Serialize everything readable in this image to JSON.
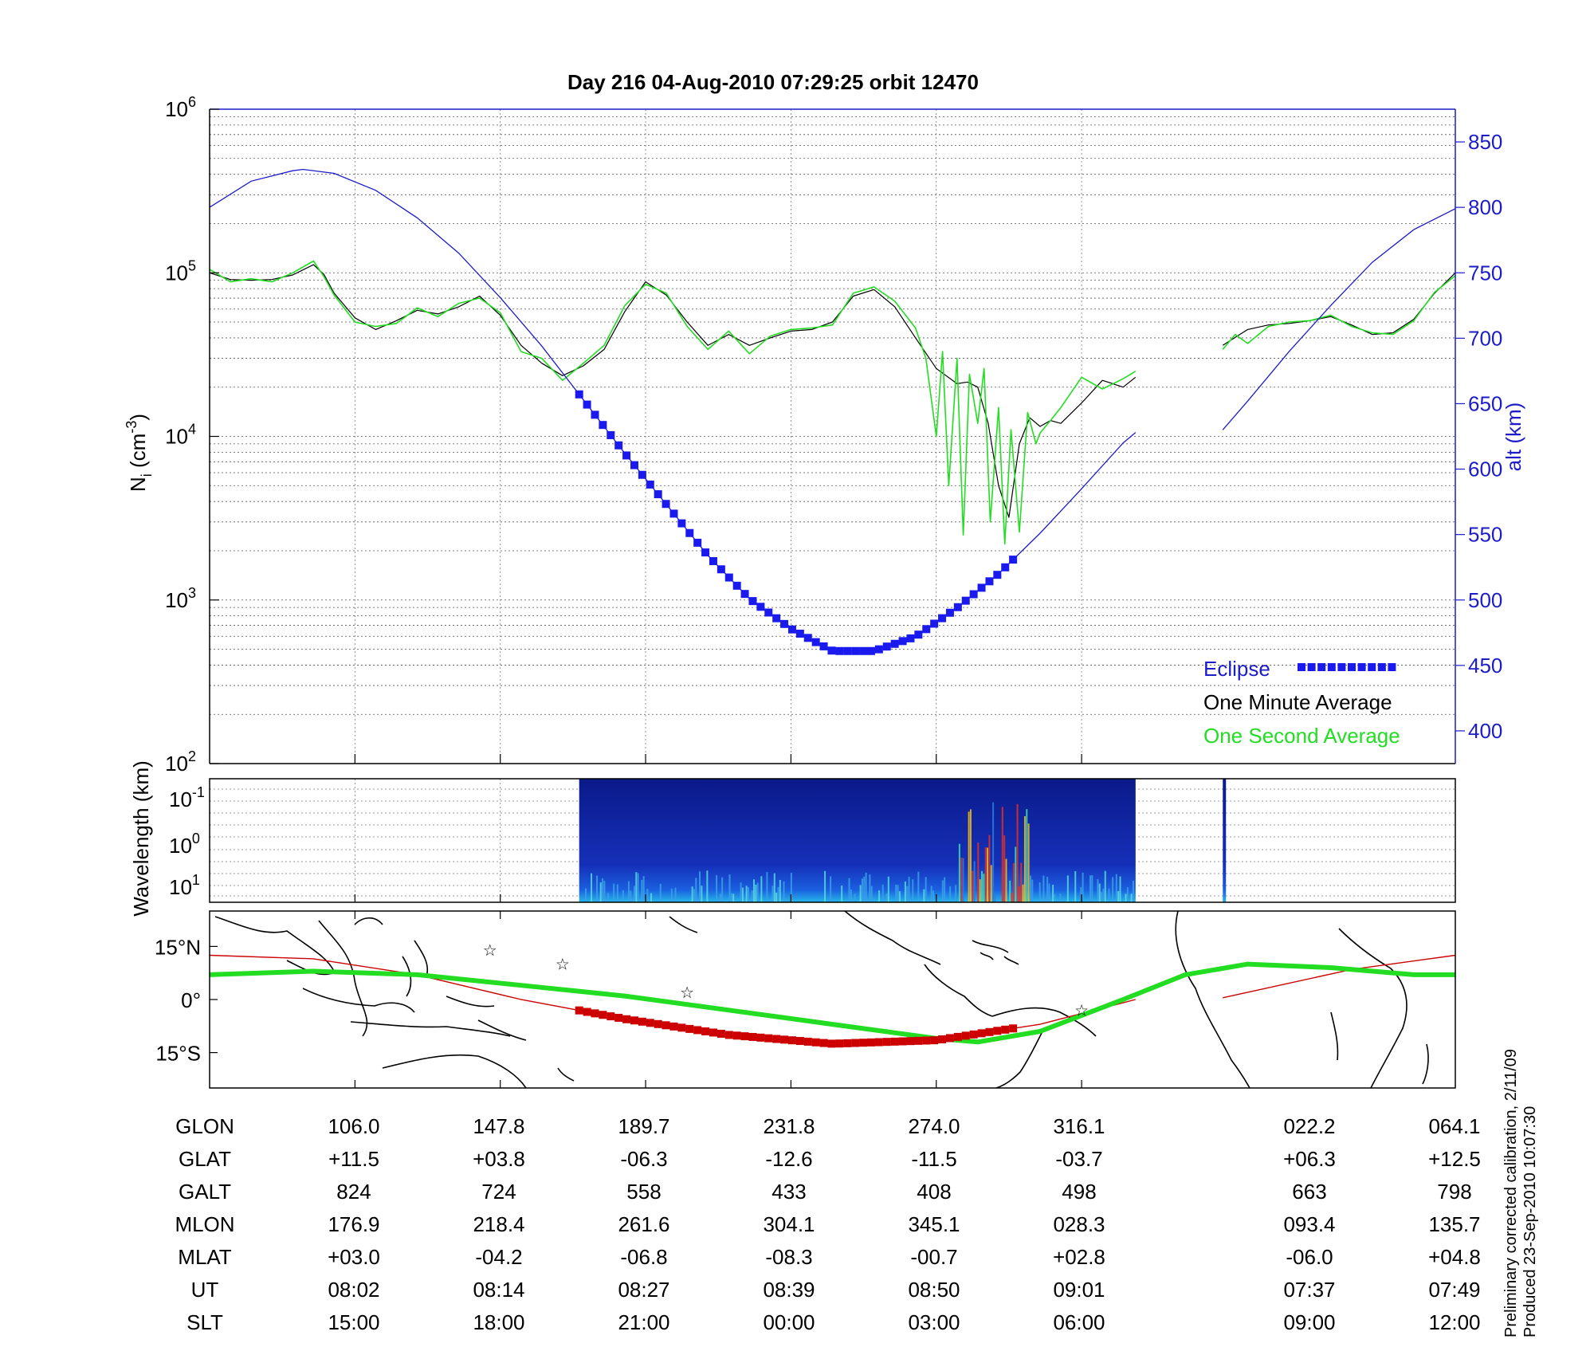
{
  "title": "Day 216  04-Aug-2010 07:29:25   orbit 12470",
  "colors": {
    "axis_blue": "#1c1cc8",
    "eclipse": "#1a1aee",
    "one_minute": "#000000",
    "one_second": "#22dd22",
    "track_red": "#cc0000",
    "ground_green": "#22dd22",
    "star": "#cc33cc"
  },
  "chart_data": [
    {
      "type": "line",
      "panel": "density",
      "ylabel": "N_i (cm^-3)",
      "ylabel_base": "N",
      "ylabel_sub": "i",
      "ylabel_unit": "(cm",
      "ylabel_exp": "-3",
      "ylabel_close": ")",
      "y_scale": "log",
      "ylim": [
        100,
        1000000
      ],
      "y_ticks": [
        {
          "value": 100,
          "base": "10",
          "exp": "2"
        },
        {
          "value": 1000,
          "base": "10",
          "exp": "3"
        },
        {
          "value": 10000,
          "base": "10",
          "exp": "4"
        },
        {
          "value": 100000,
          "base": "10",
          "exp": "5"
        },
        {
          "value": 1000000,
          "base": "10",
          "exp": "6"
        }
      ],
      "y2label": "alt (km)",
      "y2lim": [
        375,
        875
      ],
      "y2_ticks": [
        400,
        450,
        500,
        550,
        600,
        650,
        700,
        750,
        800,
        850
      ],
      "x_range_minutes": [
        0,
        60
      ],
      "x_tick_minutes": [
        7,
        14,
        21,
        28,
        35,
        42
      ],
      "legend": [
        "Eclipse",
        "One Minute Average",
        "One Second Average"
      ],
      "legend_placement": "bottom-right",
      "series": [
        {
          "name": "One Minute Average",
          "x": [
            0,
            1,
            2,
            3,
            4,
            5,
            5.5,
            6,
            7,
            8,
            9,
            10,
            11,
            12,
            13,
            14,
            15,
            16,
            17,
            18,
            19,
            20,
            21,
            22,
            23,
            24,
            25,
            26,
            27,
            28,
            29,
            30,
            31,
            32,
            33,
            34,
            35,
            36,
            36.5,
            37,
            37.5,
            38,
            38.5,
            39,
            39.5,
            40,
            40.5,
            41,
            42,
            43,
            44,
            44.6
          ],
          "y": [
            100000,
            91000,
            90000,
            91000,
            97000,
            112000,
            98000,
            75000,
            53000,
            45000,
            51000,
            59000,
            56000,
            62000,
            72000,
            55000,
            36000,
            28000,
            23500,
            27000,
            34000,
            58000,
            88000,
            73000,
            50000,
            36000,
            42000,
            36000,
            40000,
            44000,
            45000,
            50000,
            72000,
            79000,
            62000,
            40000,
            26000,
            21000,
            21500,
            20000,
            12000,
            5000,
            3200,
            9000,
            13000,
            11500,
            12500,
            12000,
            16000,
            22000,
            20000,
            23000
          ]
        },
        {
          "name": "One Minute Average",
          "x": [
            48.8,
            50,
            51,
            52,
            53,
            54,
            55,
            56,
            57,
            58,
            59,
            60
          ],
          "y": [
            36000,
            45000,
            48000,
            49000,
            51000,
            54000,
            48000,
            42000,
            43000,
            52000,
            75000,
            100000
          ]
        },
        {
          "name": "One Second Average",
          "x": [
            0,
            1,
            2,
            3,
            4,
            5,
            5.5,
            6,
            7,
            8,
            9,
            10,
            11,
            12,
            13,
            14,
            15,
            16,
            17,
            18,
            19,
            20,
            21,
            22,
            23,
            24,
            25,
            26,
            27,
            28,
            29,
            30,
            31,
            32,
            33,
            34,
            34.5,
            35,
            35.3,
            35.6,
            36,
            36.3,
            36.6,
            37,
            37.3,
            37.6,
            38,
            38.3,
            38.6,
            39,
            39.4,
            39.8,
            40,
            40.5,
            41,
            42,
            43,
            44,
            44.6
          ],
          "y": [
            105000,
            88000,
            92000,
            88000,
            100000,
            118000,
            95000,
            73000,
            50000,
            47000,
            49000,
            61000,
            54000,
            65000,
            70000,
            57000,
            33000,
            30000,
            22000,
            28000,
            36000,
            63000,
            85000,
            75000,
            47000,
            34000,
            44000,
            32000,
            41000,
            45000,
            46000,
            48000,
            75000,
            82000,
            67000,
            46000,
            30000,
            10000,
            33000,
            5000,
            30000,
            2500,
            24000,
            12000,
            26000,
            3000,
            15000,
            2200,
            11000,
            2600,
            14000,
            9000,
            10500,
            12500,
            15000,
            23000,
            19500,
            22500,
            25000
          ]
        },
        {
          "name": "One Second Average",
          "x": [
            48.8,
            49.4,
            50,
            51,
            52,
            53,
            54,
            55,
            56,
            57,
            58,
            59,
            60
          ],
          "y": [
            34000,
            42000,
            37000,
            47000,
            50000,
            51000,
            55000,
            47000,
            43000,
            42000,
            51000,
            76000,
            96000
          ]
        }
      ],
      "altitude_series": {
        "x": [
          0,
          2,
          4,
          4.5,
          6,
          8,
          10,
          12,
          14,
          16,
          18,
          20,
          22,
          24,
          26,
          28,
          30,
          32,
          34,
          36,
          38,
          40,
          42,
          44,
          44.6,
          48.8,
          50,
          52,
          54,
          56,
          58,
          60
        ],
        "y": [
          800,
          820,
          828,
          829,
          826,
          813,
          792,
          765,
          731,
          694,
          653,
          612,
          573,
          534,
          501,
          478,
          461,
          461,
          472,
          494,
          520,
          551,
          585,
          620,
          628,
          630,
          652,
          690,
          725,
          758,
          783,
          799
        ]
      },
      "eclipse_range_minutes": [
        17.8,
        38.8
      ]
    },
    {
      "type": "heatmap",
      "panel": "spectrogram",
      "ylabel": "Wavelength (km)",
      "y_ticks": [
        {
          "base": "10",
          "exp": "-1"
        },
        {
          "base": "10",
          "exp": "0"
        },
        {
          "base": "10",
          "exp": "1"
        }
      ],
      "data_ranges_minutes": [
        [
          17.8,
          44.6
        ],
        [
          48.8,
          48.9
        ]
      ]
    },
    {
      "type": "line",
      "panel": "map",
      "y_ticks": [
        "15°N",
        "0°",
        "15°S"
      ],
      "y_tick_values": [
        15,
        0,
        -15
      ],
      "ylim": [
        -25,
        25
      ],
      "series": [
        {
          "name": "track",
          "x": [
            0,
            5,
            10,
            15,
            20,
            25,
            30,
            35,
            40,
            44.6,
            48.8,
            55,
            60
          ],
          "y": [
            12.5,
            11.5,
            7,
            0,
            -5.5,
            -10,
            -12.5,
            -11.5,
            -7,
            0,
            0.5,
            8.5,
            12.5
          ]
        },
        {
          "name": "ground",
          "x": [
            0,
            5,
            10,
            15,
            20,
            25,
            30,
            35,
            37,
            40,
            44,
            47,
            50,
            54,
            58,
            60
          ],
          "y": [
            7,
            8,
            7,
            4,
            1,
            -3,
            -7,
            -11,
            -12,
            -9,
            0,
            7,
            10,
            9,
            7,
            7
          ]
        }
      ],
      "stars": [
        {
          "x": 13.5,
          "y": 14
        },
        {
          "x": 17,
          "y": 10
        },
        {
          "x": 23,
          "y": 2
        },
        {
          "x": 42,
          "y": -3
        }
      ]
    }
  ],
  "table": {
    "rows": [
      {
        "label": "GLON",
        "values": [
          "106.0",
          "147.8",
          "189.7",
          "231.8",
          "274.0",
          "316.1",
          "022.2",
          "064.1"
        ]
      },
      {
        "label": "GLAT",
        "values": [
          "+11.5",
          "+03.8",
          "-06.3",
          "-12.6",
          "-11.5",
          "-03.7",
          "+06.3",
          "+12.5"
        ]
      },
      {
        "label": "GALT",
        "values": [
          "824",
          "724",
          "558",
          "433",
          "408",
          "498",
          "663",
          "798"
        ]
      },
      {
        "label": "MLON",
        "values": [
          "176.9",
          "218.4",
          "261.6",
          "304.1",
          "345.1",
          "028.3",
          "093.4",
          "135.7"
        ]
      },
      {
        "label": "MLAT",
        "values": [
          "+03.0",
          "-04.2",
          "-06.8",
          "-08.3",
          "-00.7",
          "+02.8",
          "-06.0",
          "+04.8"
        ]
      },
      {
        "label": "UT",
        "values": [
          "08:02",
          "08:14",
          "08:27",
          "08:39",
          "08:50",
          "09:01",
          "07:37",
          "07:49"
        ]
      },
      {
        "label": "SLT",
        "values": [
          "15:00",
          "18:00",
          "21:00",
          "00:00",
          "03:00",
          "06:00",
          "09:00",
          "12:00"
        ]
      }
    ]
  },
  "footer": {
    "line1": "Preliminary corrected calibration, 2/11/09",
    "line2": "Produced 23-Sep-2010 10:07:30"
  }
}
